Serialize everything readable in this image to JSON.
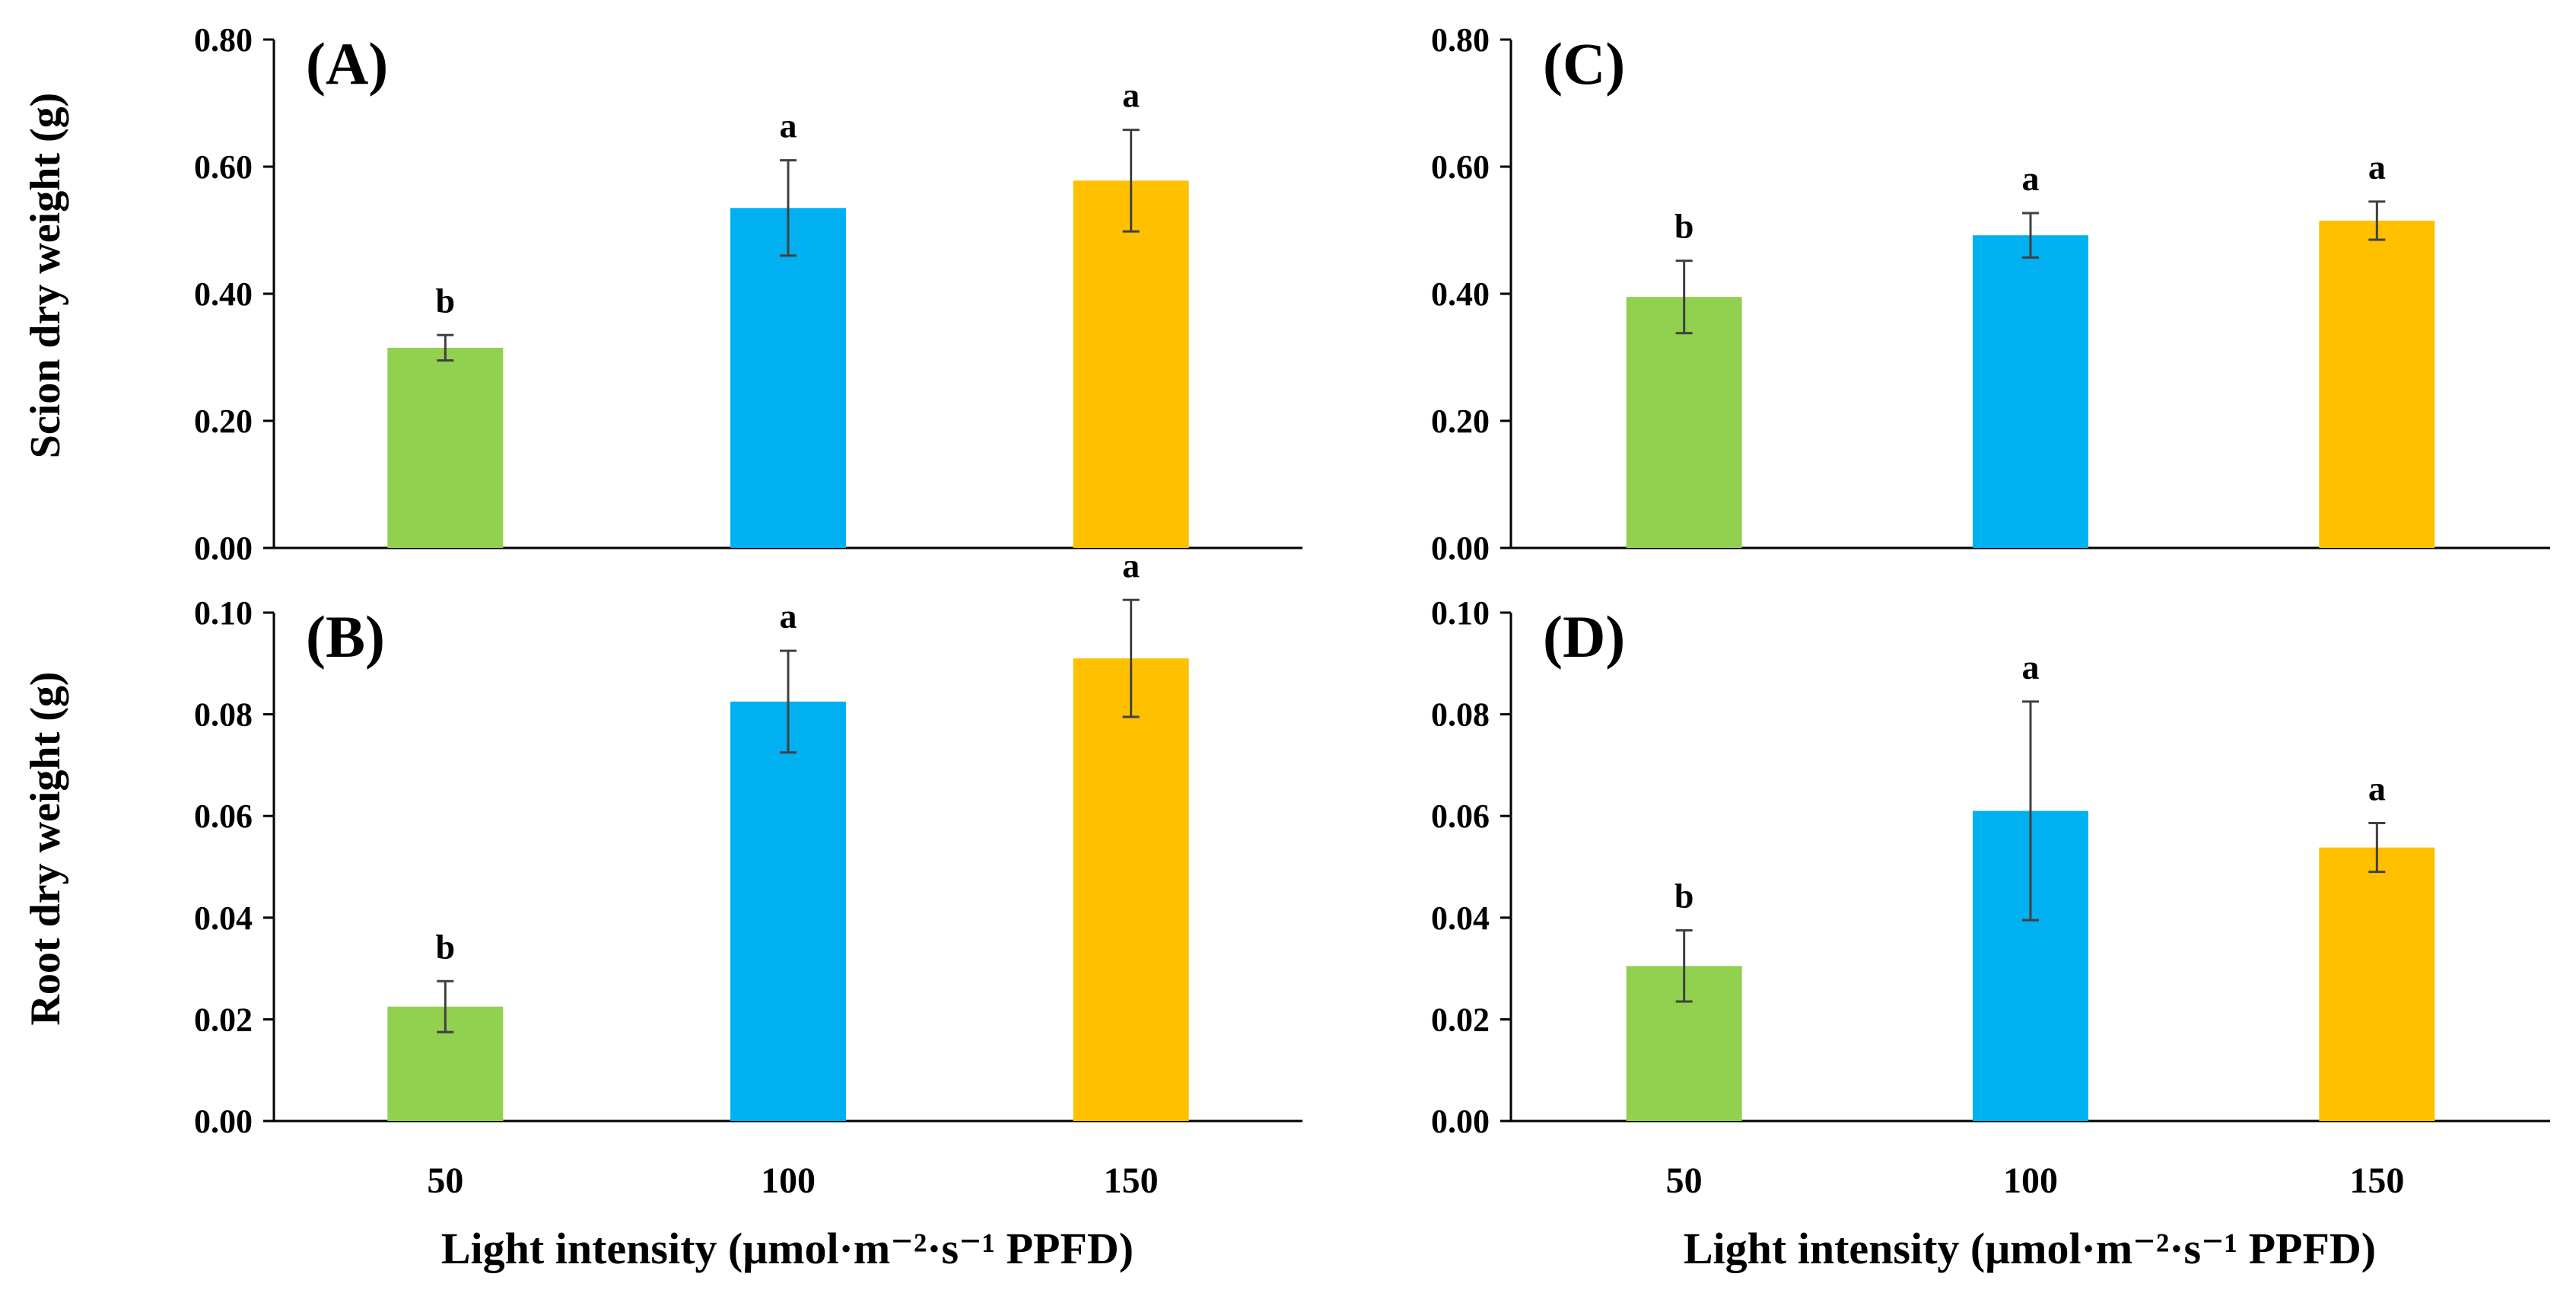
{
  "figure": {
    "ylabel_top": "Scion dry weight (g)",
    "ylabel_bottom": "Root dry weight (g)",
    "xlabel_left": "Light intensity (μmol·m⁻²·s⁻¹ PPFD)",
    "xlabel_right": "Light intensity (μmol·m⁻²·s⁻¹ PPFD)"
  },
  "colors": {
    "green": "#92D050",
    "blue": "#00B0F0",
    "yellow": "#FFC000",
    "error_bar": "#404040",
    "axis": "#000000"
  },
  "chart_data": [
    {
      "panel": "(A)",
      "type": "bar",
      "categories": [
        "50",
        "100",
        "150"
      ],
      "values": [
        0.315,
        0.535,
        0.578
      ],
      "errors": [
        0.02,
        0.075,
        0.08
      ],
      "significance": [
        "b",
        "a",
        "a"
      ],
      "ylabel": "Scion dry weight (g)",
      "xlabel": "",
      "ylim": [
        0,
        0.8
      ],
      "yticks": [
        "0.00",
        "0.20",
        "0.40",
        "0.60",
        "0.80"
      ],
      "show_xticklabels": false
    },
    {
      "panel": "(B)",
      "type": "bar",
      "categories": [
        "50",
        "100",
        "150"
      ],
      "values": [
        0.0225,
        0.0825,
        0.091
      ],
      "errors": [
        0.005,
        0.01,
        0.0115
      ],
      "significance": [
        "b",
        "a",
        "a"
      ],
      "ylabel": "Root dry weight (g)",
      "xlabel": "Light intensity (μmol·m⁻²·s⁻¹ PPFD)",
      "ylim": [
        0,
        0.1
      ],
      "yticks": [
        "0.00",
        "0.02",
        "0.04",
        "0.06",
        "0.08",
        "0.10"
      ],
      "show_xticklabels": true
    },
    {
      "panel": "(C)",
      "type": "bar",
      "categories": [
        "50",
        "100",
        "150"
      ],
      "values": [
        0.395,
        0.492,
        0.515
      ],
      "errors": [
        0.057,
        0.035,
        0.03
      ],
      "significance": [
        "b",
        "a",
        "a"
      ],
      "ylabel": "",
      "xlabel": "",
      "ylim": [
        0,
        0.8
      ],
      "yticks": [
        "0.00",
        "0.20",
        "0.40",
        "0.60",
        "0.80"
      ],
      "show_xticklabels": false
    },
    {
      "panel": "(D)",
      "type": "bar",
      "categories": [
        "50",
        "100",
        "150"
      ],
      "values": [
        0.0305,
        0.061,
        0.0538
      ],
      "errors": [
        0.007,
        0.0215,
        0.0048
      ],
      "significance": [
        "b",
        "a",
        "a"
      ],
      "ylabel": "",
      "xlabel": "Light intensity (μmol·m⁻²·s⁻¹ PPFD)",
      "ylim": [
        0,
        0.1
      ],
      "yticks": [
        "0.00",
        "0.02",
        "0.04",
        "0.06",
        "0.08",
        "0.10"
      ],
      "show_xticklabels": true
    }
  ]
}
